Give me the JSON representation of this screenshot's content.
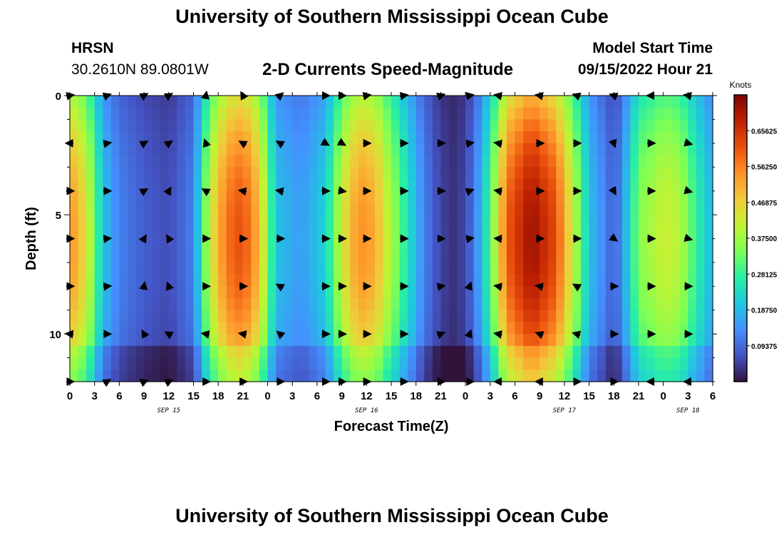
{
  "header": {
    "title": "University of Southern Mississippi Ocean Cube",
    "station": "HRSN",
    "coords": "30.2610N  89.0801W",
    "subtitle": "2-D Currents Speed-Magnitude",
    "model_start_label": "Model Start Time",
    "model_start_value": "09/15/2022 Hour 21"
  },
  "footer": {
    "title": "University of Southern Mississippi Ocean Cube"
  },
  "chart_data": {
    "type": "heatmap",
    "title": "2-D Currents Speed-Magnitude",
    "xlabel": "Forecast Time(Z)",
    "ylabel": "Depth (ft)",
    "xlim": [
      0,
      78
    ],
    "ylim": [
      12,
      0
    ],
    "x_hours_from_sep15_00z": [
      0,
      3,
      6,
      9,
      12,
      15,
      18,
      21,
      24,
      27,
      30,
      33,
      36,
      39,
      42,
      45,
      48,
      51,
      54,
      57,
      60,
      63,
      66,
      69,
      72,
      75,
      78
    ],
    "x_tick_labels": [
      "0",
      "3",
      "6",
      "9",
      "12",
      "15",
      "18",
      "21",
      "0",
      "3",
      "6",
      "9",
      "12",
      "15",
      "18",
      "21",
      "0",
      "3",
      "6",
      "9",
      "12",
      "15",
      "18",
      "21",
      "0",
      "3",
      "6"
    ],
    "date_labels": [
      {
        "text": "SEP 15",
        "hour": 12
      },
      {
        "text": "SEP 16",
        "hour": 36
      },
      {
        "text": "SEP 17",
        "hour": 60
      },
      {
        "text": "SEP 18",
        "hour": 75
      }
    ],
    "y_ticks": [
      0,
      5,
      10
    ],
    "y_tick_labels": [
      "0",
      "5",
      "10"
    ],
    "colorbar": {
      "units": "Knots",
      "range": [
        0,
        0.75
      ],
      "tick_values": [
        0.65625,
        0.5625,
        0.46875,
        0.375,
        0.28125,
        0.1875,
        0.09375
      ],
      "tick_labels": [
        "0.65625",
        "0.56250",
        "0.46875",
        "0.37500",
        "0.28125",
        "0.18750",
        "0.09375"
      ],
      "colors": [
        "#30123b",
        "#4454c4",
        "#4490fe",
        "#1fc8de",
        "#29efa2",
        "#7dff56",
        "#c1f334",
        "#f1ca3a",
        "#fe922a",
        "#ea4f0d",
        "#be2102",
        "#7a0403"
      ]
    },
    "speed_profile_anchors": [
      {
        "hour": 0,
        "speed": 0.55
      },
      {
        "hour": 2,
        "speed": 0.45
      },
      {
        "hour": 4,
        "speed": 0.2
      },
      {
        "hour": 6,
        "speed": 0.12
      },
      {
        "hour": 9,
        "speed": 0.08
      },
      {
        "hour": 12,
        "speed": 0.06
      },
      {
        "hour": 15,
        "speed": 0.12
      },
      {
        "hour": 17,
        "speed": 0.42
      },
      {
        "hour": 19,
        "speed": 0.58
      },
      {
        "hour": 21,
        "speed": 0.62
      },
      {
        "hour": 23,
        "speed": 0.5
      },
      {
        "hour": 25,
        "speed": 0.2
      },
      {
        "hour": 28,
        "speed": 0.15
      },
      {
        "hour": 31,
        "speed": 0.22
      },
      {
        "hour": 33,
        "speed": 0.42
      },
      {
        "hour": 35,
        "speed": 0.55
      },
      {
        "hour": 37,
        "speed": 0.52
      },
      {
        "hour": 39,
        "speed": 0.38
      },
      {
        "hour": 41,
        "speed": 0.25
      },
      {
        "hour": 43,
        "speed": 0.12
      },
      {
        "hour": 45,
        "speed": 0.05
      },
      {
        "hour": 47,
        "speed": 0.03
      },
      {
        "hour": 49,
        "speed": 0.1
      },
      {
        "hour": 51,
        "speed": 0.3
      },
      {
        "hour": 53,
        "speed": 0.6
      },
      {
        "hour": 56,
        "speed": 0.72
      },
      {
        "hour": 59,
        "speed": 0.62
      },
      {
        "hour": 61,
        "speed": 0.42
      },
      {
        "hour": 63,
        "speed": 0.2
      },
      {
        "hour": 65,
        "speed": 0.12
      },
      {
        "hour": 66,
        "speed": 0.08
      },
      {
        "hour": 67,
        "speed": 0.14
      },
      {
        "hour": 69,
        "speed": 0.35
      },
      {
        "hour": 72,
        "speed": 0.42
      },
      {
        "hour": 74,
        "speed": 0.4
      },
      {
        "hour": 76,
        "speed": 0.28
      },
      {
        "hour": 78,
        "speed": 0.18
      }
    ],
    "vectors": {
      "depths_ft": [
        0,
        2,
        4,
        6,
        8,
        10,
        12
      ],
      "hours": [
        0,
        4.5,
        9,
        12,
        16.5,
        21,
        25.5,
        31,
        33,
        36,
        40.5,
        45,
        48.5,
        52,
        57,
        61.5,
        66,
        70.5,
        75
      ],
      "angles_deg": [
        [
          10,
          20,
          30,
          30,
          80,
          120,
          40,
          0,
          0,
          10,
          10,
          20,
          10,
          170,
          170,
          160,
          160,
          180,
          170
        ],
        [
          180,
          10,
          30,
          35,
          110,
          150,
          150,
          -30,
          -30,
          0,
          0,
          0,
          10,
          170,
          0,
          0,
          -70,
          0,
          -15
        ],
        [
          0,
          0,
          30,
          60,
          150,
          170,
          170,
          0,
          -10,
          0,
          0,
          0,
          20,
          170,
          0,
          0,
          -60,
          0,
          -15
        ],
        [
          0,
          5,
          60,
          120,
          0,
          0,
          0,
          0,
          0,
          0,
          0,
          0,
          10,
          175,
          0,
          0,
          -35,
          0,
          -15
        ],
        [
          0,
          5,
          80,
          110,
          0,
          0,
          150,
          0,
          0,
          0,
          0,
          10,
          70,
          170,
          170,
          150,
          0,
          0,
          0
        ],
        [
          175,
          0,
          120,
          150,
          170,
          170,
          140,
          0,
          0,
          0,
          0,
          20,
          70,
          170,
          160,
          165,
          0,
          0,
          0
        ],
        [
          0,
          30,
          20,
          20,
          0,
          0,
          0,
          0,
          0,
          0,
          0,
          0,
          0,
          180,
          180,
          0,
          0,
          180,
          180
        ]
      ]
    }
  }
}
